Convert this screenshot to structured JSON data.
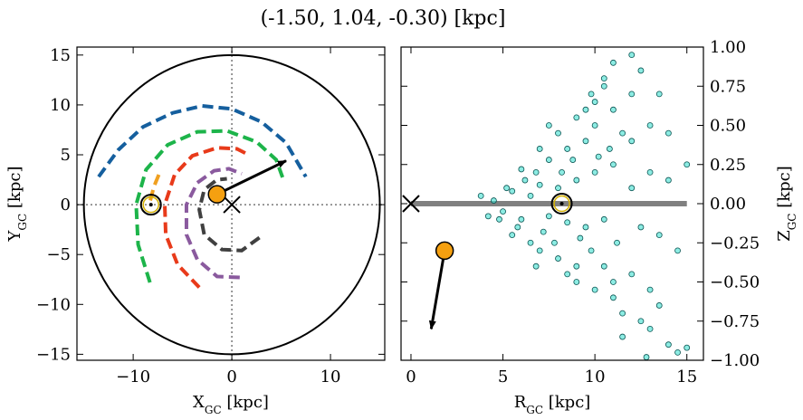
{
  "title": "(-1.50, 1.04, -0.30) [kpc]",
  "chart_data": [
    {
      "type": "line",
      "xlabel": [
        "X",
        "GC",
        " [kpc]"
      ],
      "ylabel": [
        "Y",
        "GC",
        " [kpc]"
      ],
      "xlim": [
        -15.7,
        15.5
      ],
      "ylim": [
        -15.6,
        15.8
      ],
      "xticks": [
        {
          "value": -10,
          "label": "−10"
        },
        0,
        10
      ],
      "yticks": [
        {
          "value": -15,
          "label": "−15"
        },
        {
          "value": -10,
          "label": "−10"
        },
        {
          "value": -5,
          "label": "−5"
        },
        0,
        5,
        10,
        15
      ],
      "circle_radius": 15,
      "series": [
        {
          "color": "#155f9e",
          "x": [
            -13.5,
            -11.5,
            -9,
            -6,
            -3,
            0,
            3,
            5.5,
            7.5
          ],
          "y": [
            2.8,
            5.5,
            7.8,
            9.2,
            9.9,
            9.6,
            8.3,
            6.2,
            2.8
          ]
        },
        {
          "color": "#1db44a",
          "x": [
            -8.3,
            -9.5,
            -9.7,
            -8.7,
            -6.5,
            -3.5,
            -0.5,
            2.5,
            4.5,
            5.3
          ],
          "y": [
            -7.8,
            -4,
            0,
            3.5,
            6,
            7.3,
            7.4,
            6.3,
            4.5,
            2.3
          ]
        },
        {
          "color": "#f0a020",
          "x": [
            -7.4,
            -7.9,
            -8.3
          ],
          "y": [
            3,
            1.8,
            0.3
          ]
        },
        {
          "color": "#e83a1a",
          "x": [
            -3.3,
            -5.5,
            -6.7,
            -6.8,
            -5.8,
            -4,
            -1.5,
            0.5,
            1.7
          ],
          "y": [
            -8.3,
            -6,
            -3,
            0,
            3,
            4.9,
            5.7,
            5.6,
            5
          ]
        },
        {
          "color": "#8a5a9e",
          "x": [
            0.8,
            -1.5,
            -3.5,
            -4.6,
            -4.6,
            -3.5,
            -1.8,
            -0.3,
            1
          ],
          "y": [
            -7.3,
            -7.2,
            -5.5,
            -3,
            0,
            2.2,
            3.4,
            3.6,
            3.1
          ]
        },
        {
          "color": "#404040",
          "x": [
            2.8,
            1,
            -1,
            -2.8,
            -3.3,
            -2.8,
            -1.5,
            -0.5
          ],
          "y": [
            -3.3,
            -4.6,
            -4.5,
            -3,
            -0.5,
            1.5,
            2.5,
            2.6
          ]
        }
      ],
      "sun": {
        "x": -8.2,
        "y": 0
      },
      "center": {
        "x": 0,
        "y": 0
      },
      "star": {
        "x": -1.5,
        "y": 1.04,
        "color": "#f5a010"
      },
      "arrow": {
        "x": [
          -1.5,
          5.5
        ],
        "y": [
          1.04,
          4.4
        ]
      }
    },
    {
      "type": "scatter",
      "xlabel": [
        "R",
        "GC",
        " [kpc]"
      ],
      "ylabel": [
        "Z",
        "GC",
        " [kpc]"
      ],
      "xlim": [
        -0.54,
        15.9
      ],
      "ylim": [
        -1,
        1
      ],
      "xticks": [
        0,
        5,
        10,
        15
      ],
      "yticks": [
        {
          "value": 1,
          "label": "1.00"
        },
        {
          "value": 0.75,
          "label": "0.75"
        },
        {
          "value": 0.5,
          "label": "0.50"
        },
        {
          "value": 0.25,
          "label": "0.25"
        },
        {
          "value": 0,
          "label": "0.00"
        },
        {
          "value": -0.25,
          "label": "−0.25"
        },
        {
          "value": -0.5,
          "label": "−0.50"
        },
        {
          "value": -0.75,
          "label": "−0.75"
        },
        {
          "value": -1,
          "label": "−1.00"
        }
      ],
      "series": [
        {
          "color": "#40e0d0",
          "x": [
            4.5,
            5,
            5.5,
            6,
            6.5,
            7,
            7.5,
            8,
            8.5,
            9,
            9.5,
            10,
            10.5,
            11,
            5.2,
            6.2,
            7.2,
            8.2,
            9.2,
            10.2,
            11.2,
            4.8,
            5.8,
            6.8,
            7.8,
            8.8,
            9.8,
            10.8,
            6.5,
            7.5,
            8.5,
            9.5,
            10.5,
            11.5,
            6,
            7,
            8,
            9,
            10,
            11,
            12,
            7,
            8,
            9,
            10,
            11,
            12,
            13,
            9,
            10,
            11,
            12,
            13,
            14,
            8.5,
            9.5,
            10.5,
            11.5,
            12.5,
            13.5,
            3.8,
            4.2,
            12,
            12.5,
            13,
            13.5,
            14,
            14.5,
            15,
            11,
            12,
            13,
            14,
            15,
            11.5,
            12.5,
            13.5,
            10.5,
            9.8,
            14.5,
            12.8,
            7.5,
            6.8,
            5.5
          ],
          "y": [
            0.02,
            -0.05,
            0.08,
            -0.1,
            0.05,
            0.12,
            -0.08,
            0.1,
            -0.12,
            0.15,
            -0.15,
            0.2,
            -0.1,
            0.25,
            0.1,
            0.15,
            -0.18,
            0.2,
            -0.22,
            0.3,
            -0.25,
            -0.1,
            -0.15,
            0.2,
            -0.25,
            0.28,
            -0.3,
            0.35,
            -0.25,
            0.28,
            0.35,
            0.4,
            -0.4,
            0.45,
            0.22,
            -0.3,
            -0.35,
            -0.4,
            0.5,
            -0.5,
            0.4,
            0.35,
            0.45,
            0.55,
            -0.55,
            0.6,
            -0.45,
            0.5,
            -0.5,
            0.65,
            -0.6,
            0.7,
            -0.55,
            0.45,
            -0.45,
            0.6,
            0.75,
            -0.7,
            0.85,
            -0.65,
            0.05,
            -0.08,
            0.1,
            -0.15,
            0.2,
            -0.2,
            0.15,
            -0.3,
            0.25,
            0.9,
            0.95,
            -0.8,
            -0.9,
            -0.92,
            -0.85,
            -0.75,
            0.7,
            0.8,
            0.7,
            -0.95,
            -0.98,
            0.5,
            -0.4,
            -0.2
          ]
        }
      ],
      "hline": {
        "y": 0,
        "x": [
          0,
          15
        ],
        "color": "#808080"
      },
      "sun": {
        "x": 8.2,
        "y": 0
      },
      "center": {
        "x": 0,
        "y": 0
      },
      "star": {
        "x": 1.83,
        "y": -0.3,
        "color": "#f5a010"
      },
      "arrow": {
        "x": [
          1.83,
          1.1
        ],
        "y": [
          -0.3,
          -0.8
        ]
      }
    }
  ]
}
